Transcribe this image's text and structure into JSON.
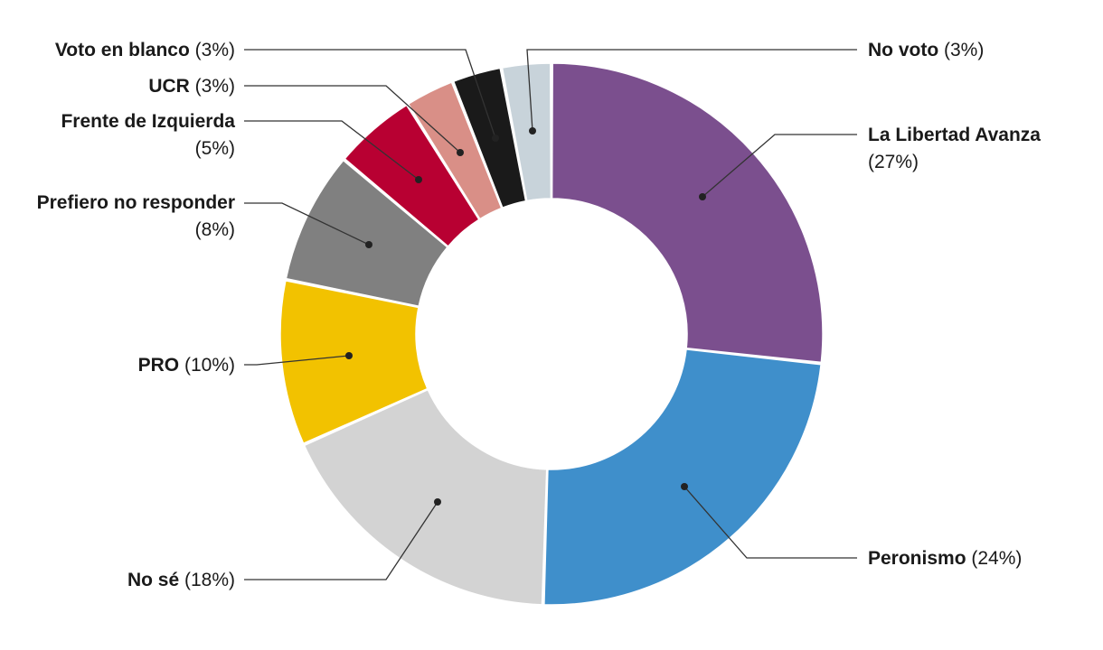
{
  "chart_data": {
    "type": "pie",
    "style": "donut",
    "start": "top",
    "direction": "clockwise",
    "slices": [
      {
        "name": "La Libertad Avanza",
        "value": 27,
        "pct_label": "(27%)",
        "color": "#7b4f8e"
      },
      {
        "name": "Peronismo",
        "value": 24,
        "pct_label": "(24%)",
        "color": "#3f8fcb"
      },
      {
        "name": "No sé",
        "value": 18,
        "pct_label": "(18%)",
        "color": "#d3d3d3"
      },
      {
        "name": "PRO",
        "value": 10,
        "pct_label": "(10%)",
        "color": "#f2c200"
      },
      {
        "name": "Prefiero no responder",
        "value": 8,
        "pct_label": "(8%)",
        "color": "#808080"
      },
      {
        "name": "Frente de Izquierda",
        "value": 5,
        "pct_label": "(5%)",
        "color": "#b80032"
      },
      {
        "name": "UCR",
        "value": 3,
        "pct_label": "(3%)",
        "color": "#d98f87"
      },
      {
        "name": "Voto en blanco",
        "value": 3,
        "pct_label": "(3%)",
        "color": "#1a1a1a"
      },
      {
        "name": "No voto",
        "value": 3,
        "pct_label": "(3%)",
        "color": "#c8d3da"
      }
    ]
  }
}
